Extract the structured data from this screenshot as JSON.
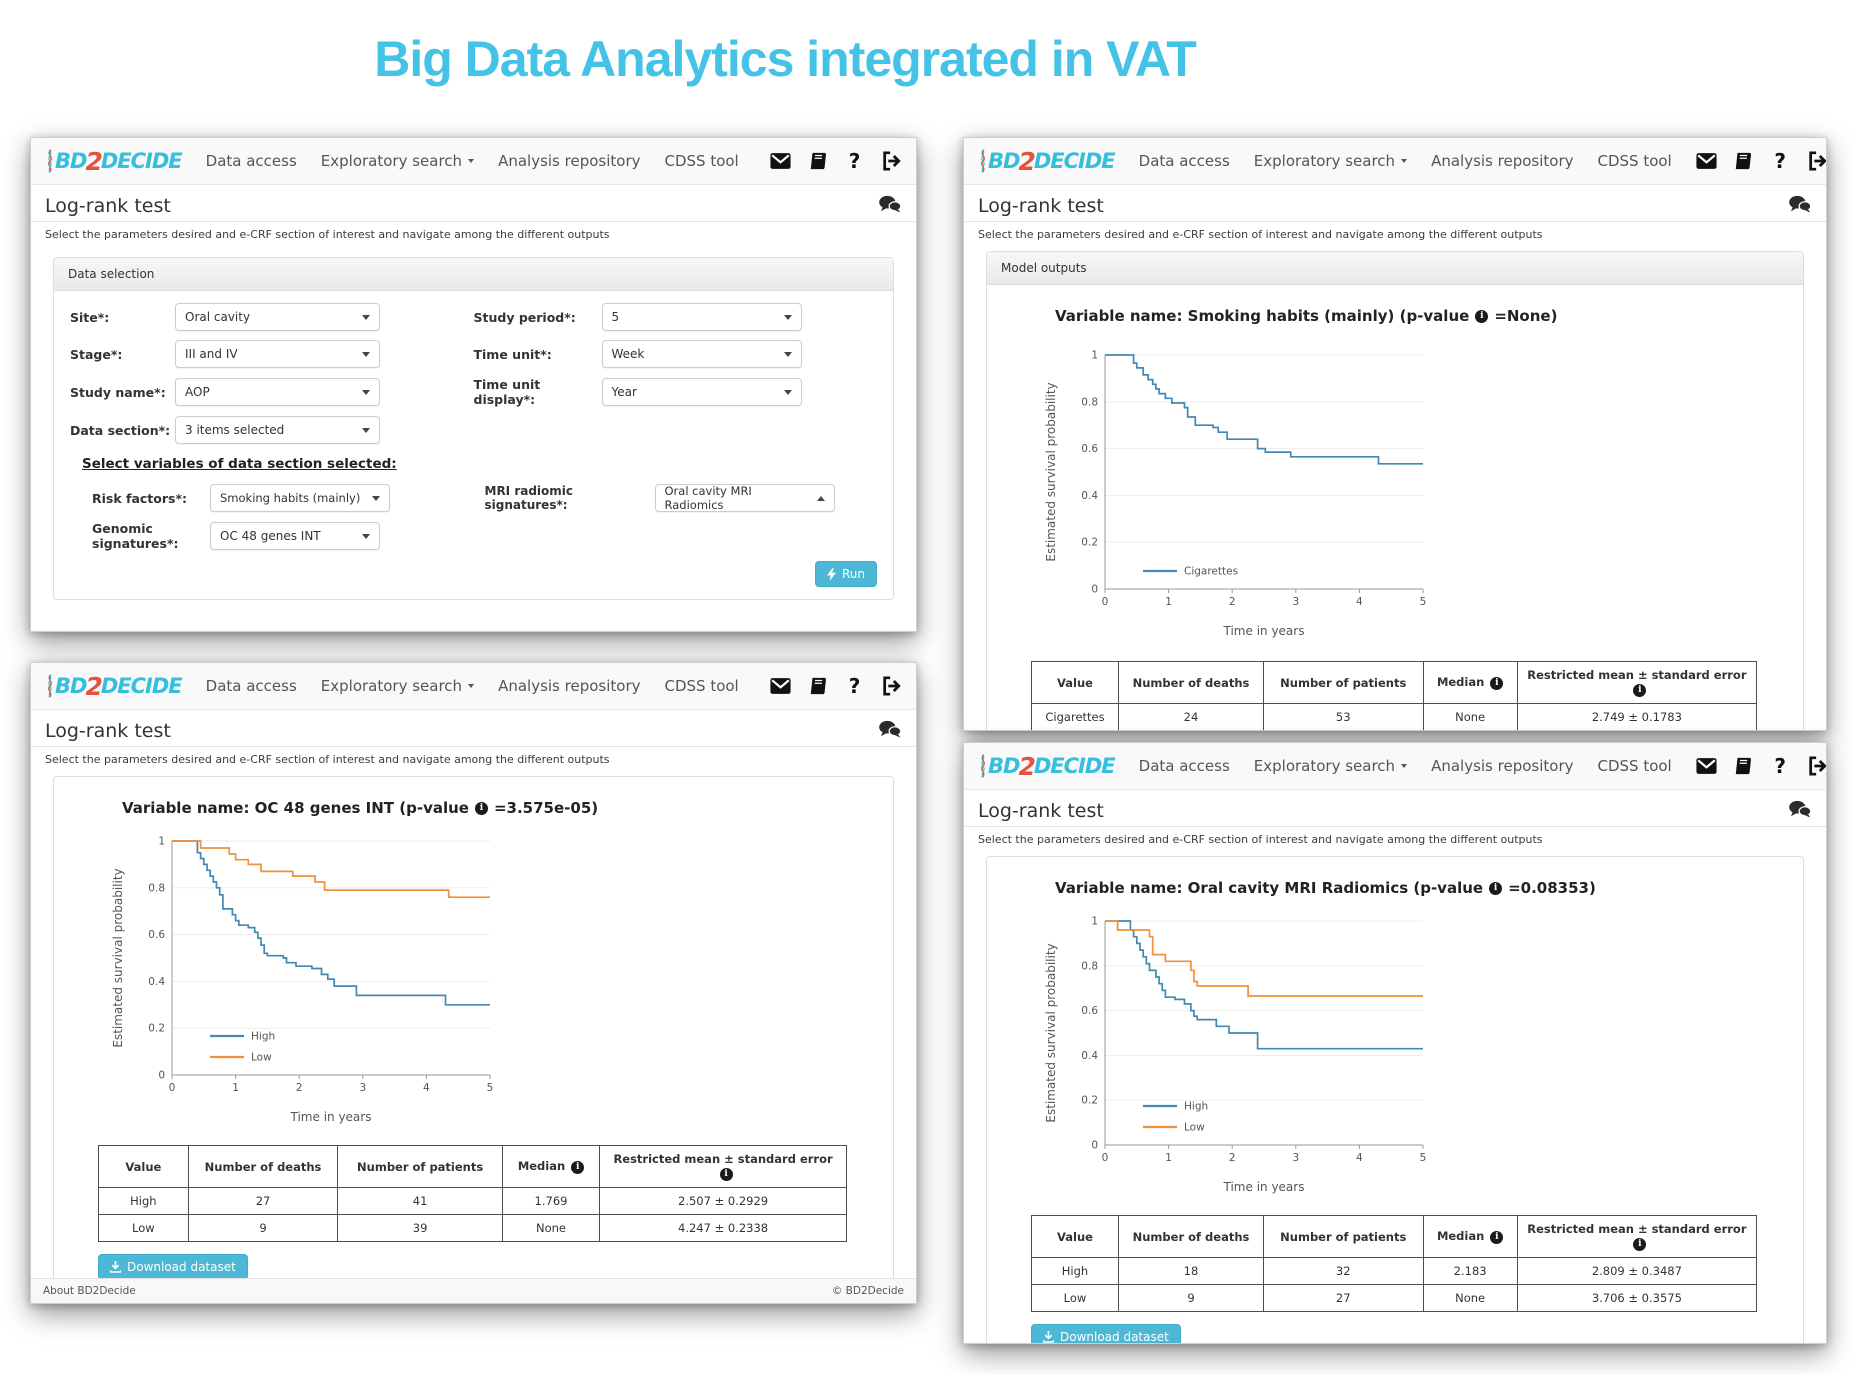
{
  "title": "Big Data Analytics integrated in VAT",
  "nav": {
    "logo_bd": "BD",
    "logo_2": "2",
    "logo_decide": "DECIDE",
    "items": [
      "Data access",
      "Exploratory search",
      "Analysis repository",
      "CDSS tool"
    ]
  },
  "common": {
    "heading": "Log-rank test",
    "subtitle": "Select the parameters desired and e-CRF section of interest and navigate among the different outputs",
    "data_selection": "Data selection",
    "model_outputs": "Model outputs",
    "select_variables": "Select variables of data section selected:",
    "run": "Run",
    "download": "Download dataset",
    "footer_left": "About BD2Decide",
    "footer_right": "© BD2Decide",
    "info_glyph": "i"
  },
  "form": {
    "site_label": "Site*:",
    "site_value": "Oral cavity",
    "stage_label": "Stage*:",
    "stage_value": "III and IV",
    "study_name_label": "Study name*:",
    "study_name_value": "AOP",
    "data_section_label": "Data section*:",
    "data_section_value": "3 items selected",
    "study_period_label": "Study period*:",
    "study_period_value": "5",
    "time_unit_label": "Time unit*:",
    "time_unit_value": "Week",
    "time_unit_display_label": "Time unit display*:",
    "time_unit_display_value": "Year",
    "risk_factors_label": "Risk factors*:",
    "risk_factors_value": "Smoking habits (mainly)",
    "genomic_label": "Genomic signatures*:",
    "genomic_value": "OC 48 genes INT",
    "mri_label": "MRI radiomic signatures*:",
    "mri_value": "Oral cavity MRI Radiomics"
  },
  "outputs": {
    "smoking": {
      "title_prefix": "Variable name: Smoking habits (mainly) (p-value",
      "title_suffix": "=None)"
    },
    "genes": {
      "title_prefix": "Variable name: OC 48 genes INT (p-value",
      "title_suffix": "=3.575e-05)"
    },
    "radiomics": {
      "title_prefix": "Variable name: Oral cavity MRI Radiomics (p-value",
      "title_suffix": "=0.08353)"
    }
  },
  "tables": {
    "headers": [
      "Value",
      "Number of deaths",
      "Number of patients",
      "Median",
      "Restricted mean ± standard error"
    ],
    "info_columns": [
      3,
      4
    ],
    "col_widths": [
      "12%",
      "20%",
      "22%",
      "13%",
      "33%"
    ],
    "smoking": [
      [
        "Cigarettes",
        "24",
        "53",
        "None",
        "2.749 ± 0.1783"
      ]
    ],
    "genes": [
      [
        "High",
        "27",
        "41",
        "1.769",
        "2.507 ± 0.2929"
      ],
      [
        "Low",
        "9",
        "39",
        "None",
        "4.247 ± 0.2338"
      ]
    ],
    "radiomics": [
      [
        "High",
        "18",
        "32",
        "2.183",
        "2.809 ± 0.3487"
      ],
      [
        "Low",
        "9",
        "27",
        "None",
        "3.706 ± 0.3575"
      ]
    ]
  },
  "chart_data": [
    {
      "type": "line",
      "title": "Smoking habits (mainly) survival",
      "p_value": "None",
      "xlabel": "Time in years",
      "ylabel": "Estimated survival probability",
      "xlim": [
        0,
        5
      ],
      "ylim": [
        0,
        1
      ],
      "xticks": [
        0,
        1,
        2,
        3,
        4,
        5
      ],
      "yticks": [
        0,
        0.2,
        0.4,
        0.6,
        0.8,
        1
      ],
      "grid": true,
      "legend_position": "bottom-left",
      "series": [
        {
          "name": "Cigarettes",
          "color": "#4288b5",
          "points": [
            [
              0,
              1
            ],
            [
              0.45,
              1
            ],
            [
              0.45,
              0.965
            ],
            [
              0.5,
              0.965
            ],
            [
              0.5,
              0.945
            ],
            [
              0.6,
              0.945
            ],
            [
              0.6,
              0.915
            ],
            [
              0.68,
              0.915
            ],
            [
              0.68,
              0.895
            ],
            [
              0.75,
              0.895
            ],
            [
              0.75,
              0.875
            ],
            [
              0.8,
              0.875
            ],
            [
              0.8,
              0.855
            ],
            [
              0.85,
              0.855
            ],
            [
              0.85,
              0.835
            ],
            [
              0.95,
              0.835
            ],
            [
              0.95,
              0.815
            ],
            [
              1.05,
              0.815
            ],
            [
              1.05,
              0.795
            ],
            [
              1.25,
              0.795
            ],
            [
              1.25,
              0.775
            ],
            [
              1.3,
              0.775
            ],
            [
              1.3,
              0.735
            ],
            [
              1.42,
              0.735
            ],
            [
              1.42,
              0.7
            ],
            [
              1.7,
              0.7
            ],
            [
              1.7,
              0.69
            ],
            [
              1.78,
              0.69
            ],
            [
              1.78,
              0.67
            ],
            [
              1.92,
              0.67
            ],
            [
              1.92,
              0.64
            ],
            [
              2.4,
              0.64
            ],
            [
              2.4,
              0.6
            ],
            [
              2.52,
              0.6
            ],
            [
              2.52,
              0.585
            ],
            [
              2.92,
              0.585
            ],
            [
              2.92,
              0.565
            ],
            [
              4.3,
              0.565
            ],
            [
              4.3,
              0.535
            ],
            [
              5,
              0.535
            ]
          ]
        }
      ]
    },
    {
      "type": "line",
      "title": "OC 48 genes INT survival",
      "p_value": "3.575e-05",
      "xlabel": "Time in years",
      "ylabel": "Estimated survival probability",
      "xlim": [
        0,
        5
      ],
      "ylim": [
        0,
        1
      ],
      "xticks": [
        0,
        1,
        2,
        3,
        4,
        5
      ],
      "yticks": [
        0,
        0.2,
        0.4,
        0.6,
        0.8,
        1
      ],
      "grid": true,
      "legend_position": "bottom-left",
      "series": [
        {
          "name": "High",
          "color": "#4288b5",
          "points": [
            [
              0,
              1
            ],
            [
              0.4,
              1
            ],
            [
              0.4,
              0.95
            ],
            [
              0.45,
              0.95
            ],
            [
              0.45,
              0.925
            ],
            [
              0.5,
              0.925
            ],
            [
              0.5,
              0.9
            ],
            [
              0.55,
              0.9
            ],
            [
              0.55,
              0.875
            ],
            [
              0.6,
              0.875
            ],
            [
              0.6,
              0.85
            ],
            [
              0.65,
              0.85
            ],
            [
              0.65,
              0.825
            ],
            [
              0.7,
              0.825
            ],
            [
              0.7,
              0.8
            ],
            [
              0.75,
              0.8
            ],
            [
              0.75,
              0.77
            ],
            [
              0.8,
              0.77
            ],
            [
              0.8,
              0.71
            ],
            [
              0.95,
              0.71
            ],
            [
              0.95,
              0.685
            ],
            [
              1,
              0.685
            ],
            [
              1,
              0.66
            ],
            [
              1.05,
              0.66
            ],
            [
              1.05,
              0.64
            ],
            [
              1.2,
              0.64
            ],
            [
              1.2,
              0.63
            ],
            [
              1.3,
              0.63
            ],
            [
              1.3,
              0.61
            ],
            [
              1.35,
              0.61
            ],
            [
              1.35,
              0.585
            ],
            [
              1.4,
              0.585
            ],
            [
              1.4,
              0.555
            ],
            [
              1.45,
              0.555
            ],
            [
              1.45,
              0.52
            ],
            [
              1.5,
              0.52
            ],
            [
              1.5,
              0.51
            ],
            [
              1.75,
              0.51
            ],
            [
              1.75,
              0.5
            ],
            [
              1.8,
              0.5
            ],
            [
              1.8,
              0.48
            ],
            [
              1.95,
              0.48
            ],
            [
              1.95,
              0.465
            ],
            [
              2.2,
              0.465
            ],
            [
              2.2,
              0.455
            ],
            [
              2.35,
              0.455
            ],
            [
              2.35,
              0.43
            ],
            [
              2.45,
              0.43
            ],
            [
              2.45,
              0.41
            ],
            [
              2.55,
              0.41
            ],
            [
              2.55,
              0.38
            ],
            [
              2.9,
              0.38
            ],
            [
              2.9,
              0.34
            ],
            [
              4.3,
              0.34
            ],
            [
              4.3,
              0.3
            ],
            [
              5,
              0.3
            ]
          ]
        },
        {
          "name": "Low",
          "color": "#f0913c",
          "points": [
            [
              0,
              1
            ],
            [
              0.45,
              1
            ],
            [
              0.45,
              0.97
            ],
            [
              0.9,
              0.97
            ],
            [
              0.9,
              0.945
            ],
            [
              1,
              0.945
            ],
            [
              1,
              0.92
            ],
            [
              1.2,
              0.92
            ],
            [
              1.2,
              0.9
            ],
            [
              1.4,
              0.9
            ],
            [
              1.4,
              0.87
            ],
            [
              1.9,
              0.87
            ],
            [
              1.9,
              0.85
            ],
            [
              2.25,
              0.85
            ],
            [
              2.25,
              0.825
            ],
            [
              2.4,
              0.825
            ],
            [
              2.4,
              0.79
            ],
            [
              4.35,
              0.79
            ],
            [
              4.35,
              0.76
            ],
            [
              5,
              0.76
            ]
          ]
        }
      ]
    },
    {
      "type": "line",
      "title": "Oral cavity MRI Radiomics survival",
      "p_value": "0.08353",
      "xlabel": "Time in years",
      "ylabel": "Estimated survival probability",
      "xlim": [
        0,
        5
      ],
      "ylim": [
        0,
        1
      ],
      "xticks": [
        0,
        1,
        2,
        3,
        4,
        5
      ],
      "yticks": [
        0,
        0.2,
        0.4,
        0.6,
        0.8,
        1
      ],
      "grid": true,
      "legend_position": "bottom-left",
      "series": [
        {
          "name": "High",
          "color": "#4288b5",
          "points": [
            [
              0,
              1
            ],
            [
              0.4,
              1
            ],
            [
              0.4,
              0.96
            ],
            [
              0.45,
              0.96
            ],
            [
              0.45,
              0.93
            ],
            [
              0.5,
              0.93
            ],
            [
              0.5,
              0.9
            ],
            [
              0.55,
              0.9
            ],
            [
              0.55,
              0.87
            ],
            [
              0.6,
              0.87
            ],
            [
              0.6,
              0.84
            ],
            [
              0.65,
              0.84
            ],
            [
              0.65,
              0.81
            ],
            [
              0.7,
              0.81
            ],
            [
              0.7,
              0.78
            ],
            [
              0.8,
              0.78
            ],
            [
              0.8,
              0.75
            ],
            [
              0.85,
              0.75
            ],
            [
              0.85,
              0.72
            ],
            [
              0.9,
              0.72
            ],
            [
              0.9,
              0.69
            ],
            [
              0.95,
              0.69
            ],
            [
              0.95,
              0.66
            ],
            [
              1.1,
              0.66
            ],
            [
              1.1,
              0.65
            ],
            [
              1.25,
              0.65
            ],
            [
              1.25,
              0.63
            ],
            [
              1.35,
              0.63
            ],
            [
              1.35,
              0.6
            ],
            [
              1.4,
              0.6
            ],
            [
              1.4,
              0.575
            ],
            [
              1.45,
              0.575
            ],
            [
              1.45,
              0.56
            ],
            [
              1.75,
              0.56
            ],
            [
              1.75,
              0.53
            ],
            [
              1.95,
              0.53
            ],
            [
              1.95,
              0.5
            ],
            [
              2.4,
              0.5
            ],
            [
              2.4,
              0.43
            ],
            [
              5,
              0.43
            ]
          ]
        },
        {
          "name": "Low",
          "color": "#f0913c",
          "points": [
            [
              0,
              1
            ],
            [
              0.2,
              1
            ],
            [
              0.2,
              0.96
            ],
            [
              0.7,
              0.96
            ],
            [
              0.7,
              0.93
            ],
            [
              0.75,
              0.93
            ],
            [
              0.75,
              0.85
            ],
            [
              0.95,
              0.85
            ],
            [
              0.95,
              0.82
            ],
            [
              1.35,
              0.82
            ],
            [
              1.35,
              0.78
            ],
            [
              1.4,
              0.78
            ],
            [
              1.4,
              0.73
            ],
            [
              1.45,
              0.73
            ],
            [
              1.45,
              0.71
            ],
            [
              2.25,
              0.71
            ],
            [
              2.25,
              0.665
            ],
            [
              5,
              0.665
            ]
          ]
        }
      ]
    }
  ]
}
